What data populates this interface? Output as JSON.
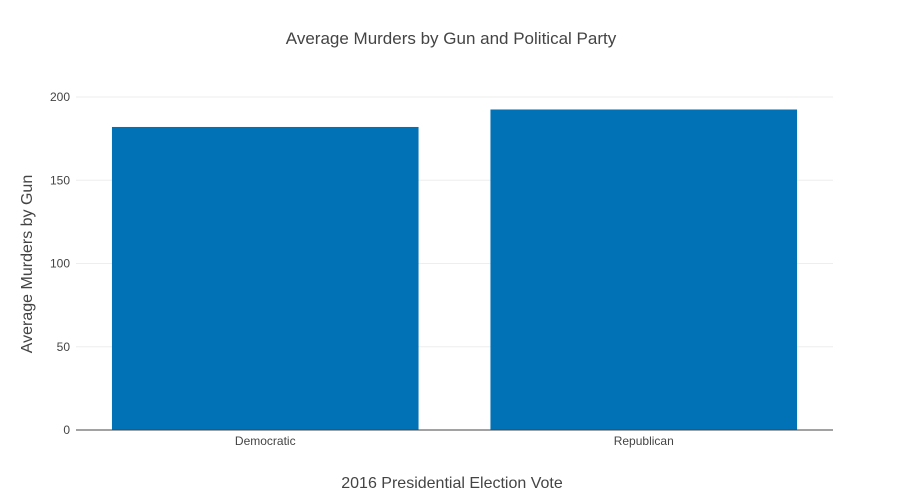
{
  "chart_data": {
    "type": "bar",
    "title": "Average Murders by Gun and Political Party",
    "xlabel": "2016 Presidential Election Vote",
    "ylabel": "Average Murders by Gun",
    "categories": [
      "Democratic",
      "Republican"
    ],
    "values": [
      182,
      192.5
    ],
    "ylim": [
      0,
      200
    ],
    "yticks": [
      0,
      50,
      100,
      150,
      200
    ],
    "grid": true,
    "legend": "none",
    "bar_color": "#0072b5"
  }
}
